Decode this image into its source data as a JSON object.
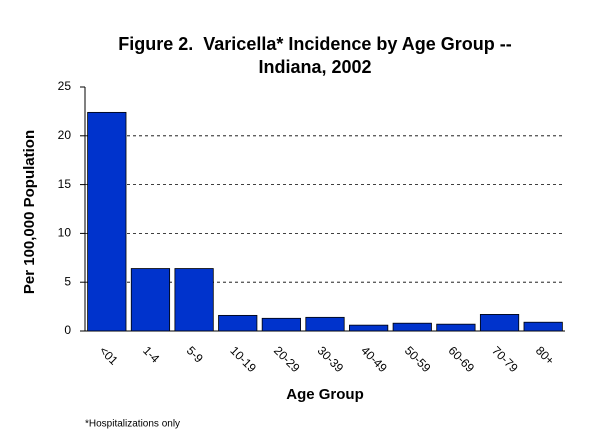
{
  "chart_data": {
    "type": "bar",
    "title": [
      "Figure 2.  Varicella* Incidence by Age Group --",
      "Indiana, 2002"
    ],
    "x_label": "Age Group",
    "y_label": "Per 100,000 Population",
    "footnote": "*Hospitalizations only",
    "categories": [
      "<01",
      "1-4",
      "5-9",
      "10-19",
      "20-29",
      "30-39",
      "40-49",
      "50-59",
      "60-69",
      "70-79",
      "80+"
    ],
    "values": [
      22.4,
      6.4,
      6.4,
      1.6,
      1.3,
      1.4,
      0.6,
      0.8,
      0.7,
      1.7,
      0.9
    ],
    "color": "#0033cc",
    "ylim": [
      0,
      25
    ],
    "yticks": [
      0,
      5,
      10,
      15,
      20,
      25
    ],
    "grid": true
  }
}
